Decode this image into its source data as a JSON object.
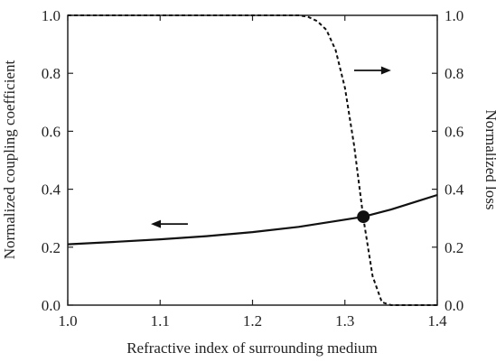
{
  "chart_data": {
    "type": "line",
    "xlabel": "Refractive index of surrounding medium",
    "ylabel_left": "Normalized coupling coefficient",
    "ylabel_right": "Normalized loss",
    "xlim": [
      1.0,
      1.4
    ],
    "ylim_left": [
      0.0,
      1.0
    ],
    "ylim_right": [
      0.0,
      1.0
    ],
    "x_ticks": [
      "1.0",
      "1.1",
      "1.2",
      "1.3",
      "1.4"
    ],
    "y_ticks_left": [
      "0.0",
      "0.2",
      "0.4",
      "0.6",
      "0.8",
      "1.0"
    ],
    "y_ticks_right": [
      "0.0",
      "0.2",
      "0.4",
      "0.6",
      "0.8",
      "1.0"
    ],
    "grid": false,
    "series": [
      {
        "axis": "left",
        "style": "solid",
        "color": "#111111",
        "x": [
          1.0,
          1.05,
          1.1,
          1.15,
          1.2,
          1.25,
          1.3,
          1.32,
          1.35,
          1.38,
          1.4
        ],
        "values": [
          0.21,
          0.218,
          0.227,
          0.238,
          0.252,
          0.27,
          0.295,
          0.305,
          0.33,
          0.36,
          0.38
        ]
      },
      {
        "axis": "right",
        "style": "dashed",
        "color": "#111111",
        "x": [
          1.0,
          1.2,
          1.25,
          1.26,
          1.27,
          1.28,
          1.29,
          1.3,
          1.31,
          1.32,
          1.33,
          1.34,
          1.35,
          1.4
        ],
        "values": [
          1.0,
          1.0,
          1.0,
          0.995,
          0.98,
          0.95,
          0.88,
          0.75,
          0.55,
          0.3,
          0.1,
          0.01,
          0.0,
          0.0
        ]
      }
    ],
    "marker": {
      "x": 1.32,
      "y": 0.305,
      "color": "#111111"
    },
    "arrows": [
      {
        "direction": "left",
        "x_from": 1.13,
        "x_to": 1.09,
        "y": 0.28,
        "axis": "left"
      },
      {
        "direction": "right",
        "x_from": 1.31,
        "x_to": 1.35,
        "y": 0.81,
        "axis": "left"
      }
    ]
  }
}
